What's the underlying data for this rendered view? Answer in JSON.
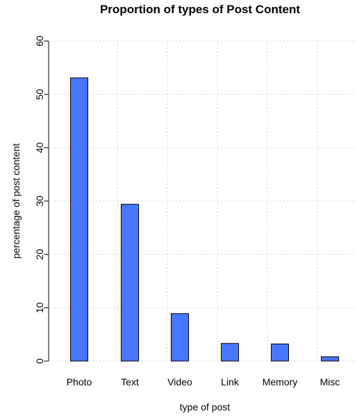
{
  "chart_data": {
    "type": "bar",
    "title": "Proportion of types of Post Content",
    "xlabel": "type of post",
    "ylabel": "percentage of post content",
    "categories": [
      "Photo",
      "Text",
      "Video",
      "Link",
      "Memory",
      "Misc"
    ],
    "values": [
      53.1,
      29.4,
      8.9,
      3.3,
      3.2,
      0.8
    ],
    "ylim": [
      0,
      60
    ],
    "yticks": [
      "0",
      "10",
      "20",
      "30",
      "40",
      "50",
      "60"
    ],
    "grid": true,
    "bar_color": "#4876FF"
  }
}
